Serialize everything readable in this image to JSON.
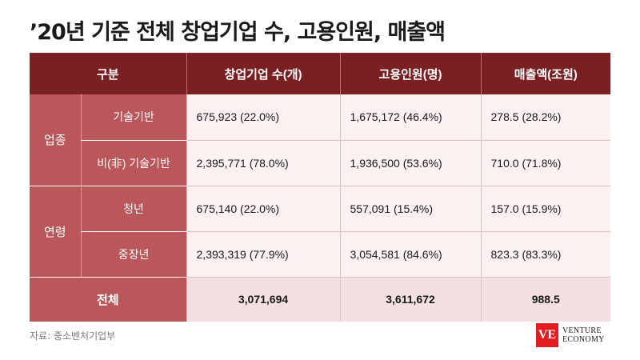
{
  "title": "’20년 기준 전체 창업기업 수, 고용인원, 매출액",
  "table": {
    "headers": [
      "구분",
      "창업기업 수(개)",
      "고용인원(명)",
      "매출액(조원)"
    ],
    "groups": [
      {
        "label": "업종",
        "rows": [
          {
            "label": "기술기반",
            "values": [
              "675,923 (22.0%)",
              "1,675,172 (46.4%)",
              "278.5 (28.2%)"
            ]
          },
          {
            "label": "비(非) 기술기반",
            "values": [
              "2,395,771 (78.0%)",
              "1,936,500 (53.6%)",
              "710.0 (71.8%)"
            ]
          }
        ]
      },
      {
        "label": "연령",
        "rows": [
          {
            "label": "청년",
            "values": [
              "675,140 (22.0%)",
              "557,091 (15.4%)",
              "157.0 (15.9%)"
            ]
          },
          {
            "label": "중장년",
            "values": [
              "2,393,319 (77.9%)",
              "3,054,581 (84.6%)",
              "823.3 (83.3%)"
            ]
          }
        ]
      }
    ],
    "total": {
      "label": "전체",
      "values": [
        "3,071,694",
        "3,611,672",
        "988.5"
      ]
    }
  },
  "source": "자료: 중소벤처기업부",
  "logo": {
    "mark": "VE",
    "line1": "VENTURE",
    "line2": "ECONOMY"
  },
  "colors": {
    "header": "#7a1f22",
    "label": "#b9575a",
    "cell": "#fbf1f1",
    "total": "#f4e0e0",
    "logo": "#e31b23"
  }
}
